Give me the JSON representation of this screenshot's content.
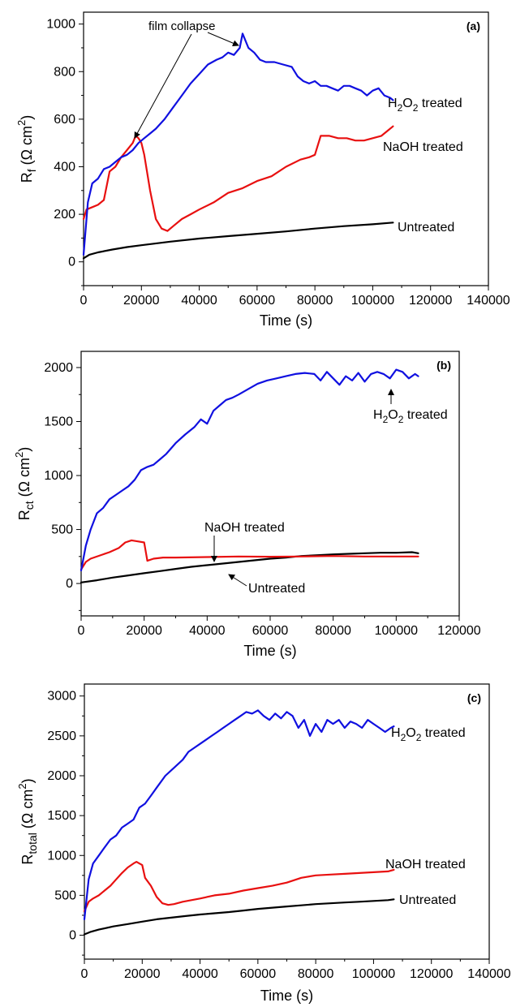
{
  "chart_data": [
    {
      "type": "line",
      "panel_label": "(a)",
      "xlabel": "Time (s)",
      "ylabel": "R_f (Ω cm²)",
      "ylabel_parts": {
        "base": "R",
        "sub": "f",
        "unit_open": " (Ω cm",
        "sup": "2",
        "unit_close": ")"
      },
      "xlim": [
        0,
        140000
      ],
      "ylim": [
        -100,
        1050
      ],
      "xticks": [
        0,
        20000,
        40000,
        60000,
        80000,
        100000,
        120000,
        140000
      ],
      "yticks": [
        0,
        200,
        400,
        600,
        800,
        1000
      ],
      "colors": {
        "blue": "#1010e0",
        "red": "#e81010",
        "black": "#000000"
      },
      "series": [
        {
          "name": "H₂O₂ treated",
          "label_parts": {
            "base": "H",
            "sub1": "2",
            "mid": "O",
            "sub2": "2",
            "rest": " treated"
          },
          "color": "blue",
          "x": [
            0,
            1500,
            3000,
            5000,
            7000,
            9000,
            11000,
            13000,
            15000,
            17000,
            19000,
            21000,
            23000,
            25000,
            28000,
            31000,
            34000,
            37000,
            40000,
            43000,
            46000,
            48000,
            50000,
            52000,
            54000,
            55000,
            57000,
            59000,
            61000,
            63000,
            66000,
            69000,
            72000,
            74000,
            76000,
            78000,
            80000,
            82000,
            84000,
            86000,
            88000,
            90000,
            92000,
            94000,
            96000,
            98000,
            100000,
            102000,
            104000,
            106000,
            107000
          ],
          "y": [
            30,
            250,
            330,
            350,
            390,
            400,
            420,
            440,
            450,
            470,
            500,
            520,
            540,
            560,
            600,
            650,
            700,
            750,
            790,
            830,
            850,
            860,
            880,
            870,
            900,
            960,
            900,
            880,
            850,
            840,
            840,
            830,
            820,
            780,
            760,
            750,
            760,
            740,
            740,
            730,
            720,
            740,
            740,
            730,
            720,
            700,
            720,
            730,
            700,
            690,
            680
          ]
        },
        {
          "name": "NaOH treated",
          "color": "red",
          "x": [
            0,
            1000,
            3000,
            5000,
            7000,
            9000,
            11000,
            13000,
            15000,
            17000,
            18000,
            19000,
            20000,
            21000,
            23000,
            25000,
            27000,
            29000,
            31000,
            34000,
            37000,
            40000,
            45000,
            50000,
            55000,
            60000,
            65000,
            70000,
            75000,
            78000,
            80000,
            82000,
            85000,
            88000,
            91000,
            94000,
            97000,
            100000,
            103000,
            105000,
            107000
          ],
          "y": [
            180,
            220,
            230,
            240,
            260,
            380,
            400,
            440,
            470,
            500,
            530,
            520,
            500,
            450,
            300,
            180,
            140,
            130,
            150,
            180,
            200,
            220,
            250,
            290,
            310,
            340,
            360,
            400,
            430,
            440,
            450,
            530,
            530,
            520,
            520,
            510,
            510,
            520,
            530,
            550,
            570
          ]
        },
        {
          "name": "Untreated",
          "color": "black",
          "x": [
            0,
            2000,
            5000,
            10000,
            15000,
            20000,
            30000,
            40000,
            50000,
            60000,
            70000,
            80000,
            90000,
            100000,
            107000
          ],
          "y": [
            15,
            30,
            40,
            52,
            62,
            70,
            85,
            98,
            108,
            118,
            128,
            140,
            150,
            158,
            165
          ]
        }
      ],
      "annotations": [
        "film collapse"
      ]
    },
    {
      "type": "line",
      "panel_label": "(b)",
      "xlabel": "Time (s)",
      "ylabel": "R_ct (Ω cm²)",
      "ylabel_parts": {
        "base": "R",
        "sub": "ct",
        "unit_open": " (Ω cm",
        "sup": "2",
        "unit_close": ")"
      },
      "xlim": [
        0,
        120000
      ],
      "ylim": [
        -300,
        2150
      ],
      "xticks": [
        0,
        20000,
        40000,
        60000,
        80000,
        100000,
        120000
      ],
      "yticks": [
        0,
        500,
        1000,
        1500,
        2000
      ],
      "series": [
        {
          "name": "H₂O₂ treated",
          "label_parts": {
            "base": "H",
            "sub1": "2",
            "mid": "O",
            "sub2": "2",
            "rest": " treated"
          },
          "color": "blue",
          "x": [
            0,
            1500,
            3000,
            5000,
            7000,
            9000,
            11000,
            13000,
            15000,
            17000,
            19000,
            21000,
            23000,
            25000,
            27000,
            30000,
            33000,
            36000,
            38000,
            40000,
            42000,
            44000,
            46000,
            48000,
            50000,
            53000,
            56000,
            59000,
            62000,
            65000,
            68000,
            71000,
            74000,
            76000,
            78000,
            80000,
            82000,
            84000,
            86000,
            88000,
            90000,
            92000,
            94000,
            96000,
            98000,
            100000,
            102000,
            104000,
            106000,
            107000
          ],
          "y": [
            120,
            350,
            500,
            650,
            700,
            780,
            820,
            860,
            900,
            960,
            1050,
            1080,
            1100,
            1150,
            1200,
            1300,
            1380,
            1450,
            1520,
            1480,
            1600,
            1650,
            1700,
            1720,
            1750,
            1800,
            1850,
            1880,
            1900,
            1920,
            1940,
            1950,
            1940,
            1880,
            1960,
            1900,
            1840,
            1920,
            1880,
            1950,
            1870,
            1940,
            1960,
            1940,
            1900,
            1980,
            1960,
            1900,
            1940,
            1920
          ]
        },
        {
          "name": "NaOH treated",
          "color": "red",
          "x": [
            0,
            1500,
            3000,
            6000,
            9000,
            12000,
            14000,
            16000,
            18000,
            20000,
            21000,
            23000,
            26000,
            30000,
            40000,
            50000,
            60000,
            70000,
            80000,
            90000,
            100000,
            107000
          ],
          "y": [
            130,
            200,
            230,
            260,
            290,
            330,
            380,
            400,
            390,
            380,
            210,
            230,
            240,
            240,
            245,
            250,
            248,
            250,
            255,
            250,
            250,
            250
          ]
        },
        {
          "name": "Untreated",
          "color": "black",
          "x": [
            0,
            5000,
            10000,
            15000,
            20000,
            25000,
            30000,
            35000,
            40000,
            45000,
            50000,
            55000,
            60000,
            65000,
            70000,
            75000,
            80000,
            85000,
            90000,
            95000,
            100000,
            105000,
            107000
          ],
          "y": [
            10,
            30,
            55,
            75,
            95,
            115,
            135,
            155,
            170,
            185,
            200,
            215,
            230,
            240,
            255,
            262,
            270,
            275,
            280,
            285,
            285,
            290,
            280
          ]
        }
      ],
      "annotations": []
    },
    {
      "type": "line",
      "panel_label": "(c)",
      "xlabel": "Time (s)",
      "ylabel": "R_total (Ω cm²)",
      "ylabel_parts": {
        "base": "R",
        "sub": "total",
        "unit_open": " (Ω cm",
        "sup": "2",
        "unit_close": ")"
      },
      "xlim": [
        0,
        140000
      ],
      "ylim": [
        -300,
        3150
      ],
      "xticks": [
        0,
        20000,
        40000,
        60000,
        80000,
        100000,
        120000,
        140000
      ],
      "yticks": [
        0,
        500,
        1000,
        1500,
        2000,
        2500,
        3000
      ],
      "series": [
        {
          "name": "H₂O₂ treated",
          "label_parts": {
            "base": "H",
            "sub1": "2",
            "mid": "O",
            "sub2": "2",
            "rest": " treated"
          },
          "color": "blue",
          "x": [
            0,
            1500,
            3000,
            5000,
            7000,
            9000,
            11000,
            13000,
            15000,
            17000,
            19000,
            21000,
            23000,
            25000,
            28000,
            31000,
            34000,
            36000,
            38000,
            40000,
            42000,
            44000,
            46000,
            48000,
            50000,
            52000,
            54000,
            56000,
            58000,
            60000,
            62000,
            64000,
            66000,
            68000,
            70000,
            72000,
            74000,
            76000,
            78000,
            80000,
            82000,
            84000,
            86000,
            88000,
            90000,
            92000,
            94000,
            96000,
            98000,
            100000,
            102000,
            104000,
            106000,
            107000
          ],
          "y": [
            200,
            700,
            900,
            1000,
            1100,
            1200,
            1250,
            1350,
            1400,
            1450,
            1600,
            1650,
            1750,
            1850,
            2000,
            2100,
            2200,
            2300,
            2350,
            2400,
            2450,
            2500,
            2550,
            2600,
            2650,
            2700,
            2750,
            2800,
            2780,
            2820,
            2750,
            2700,
            2780,
            2720,
            2800,
            2750,
            2600,
            2700,
            2500,
            2650,
            2550,
            2700,
            2650,
            2700,
            2600,
            2680,
            2650,
            2600,
            2700,
            2650,
            2600,
            2550,
            2600,
            2620
          ]
        },
        {
          "name": "NaOH treated",
          "color": "red",
          "x": [
            0,
            1500,
            3000,
            5000,
            7000,
            9000,
            11000,
            13000,
            15000,
            17000,
            18000,
            19000,
            20000,
            21000,
            23000,
            25000,
            27000,
            29000,
            31000,
            34000,
            37000,
            40000,
            45000,
            50000,
            55000,
            60000,
            65000,
            70000,
            75000,
            80000,
            85000,
            90000,
            95000,
            100000,
            105000,
            107000
          ],
          "y": [
            300,
            420,
            460,
            500,
            560,
            620,
            700,
            780,
            850,
            900,
            920,
            900,
            880,
            720,
            620,
            480,
            400,
            380,
            390,
            420,
            440,
            460,
            500,
            520,
            560,
            590,
            620,
            660,
            720,
            750,
            760,
            770,
            780,
            790,
            800,
            820
          ]
        },
        {
          "name": "Untreated",
          "color": "black",
          "x": [
            0,
            2000,
            5000,
            10000,
            15000,
            20000,
            25000,
            30000,
            35000,
            40000,
            45000,
            50000,
            55000,
            60000,
            65000,
            70000,
            75000,
            80000,
            85000,
            90000,
            95000,
            100000,
            105000,
            107000
          ],
          "y": [
            10,
            40,
            70,
            110,
            140,
            170,
            200,
            220,
            240,
            260,
            275,
            290,
            310,
            330,
            345,
            360,
            375,
            390,
            400,
            410,
            420,
            430,
            440,
            450
          ]
        }
      ],
      "annotations": []
    }
  ]
}
